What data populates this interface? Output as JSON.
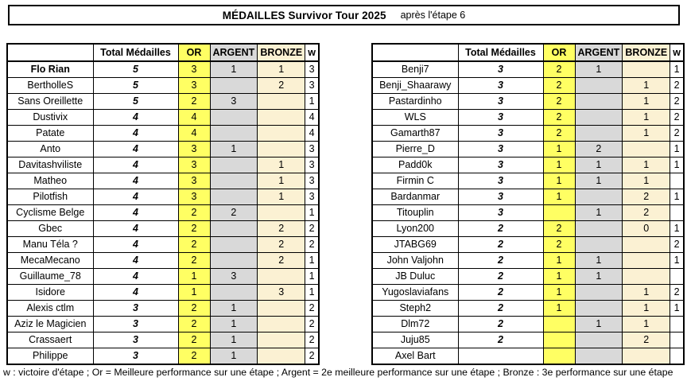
{
  "title": {
    "main": "MÉDAILLES Survivor Tour 2025",
    "sub": "après l'étape 6"
  },
  "columns": {
    "name": "",
    "total": "Total Médailles",
    "or": "OR",
    "argent": "ARGENT",
    "bronze": "BRONZE",
    "w": "w"
  },
  "colors": {
    "or_bg": "#FFFF63",
    "argent_bg": "#D9D9D9",
    "bronze_bg": "#FBF1D3",
    "border": "#000000"
  },
  "left_table": {
    "rows": [
      {
        "name": "Flo Rian",
        "bold": true,
        "total": "5",
        "or": "3",
        "argent": "1",
        "bronze": "1",
        "w": "3"
      },
      {
        "name": "BertholleS",
        "total": "5",
        "or": "3",
        "argent": "",
        "bronze": "2",
        "w": "3"
      },
      {
        "name": "Sans Oreillette",
        "total": "5",
        "or": "2",
        "argent": "3",
        "bronze": "",
        "w": "1"
      },
      {
        "name": "Dustivix",
        "total": "4",
        "or": "4",
        "argent": "",
        "bronze": "",
        "w": "4"
      },
      {
        "name": "Patate",
        "total": "4",
        "or": "4",
        "argent": "",
        "bronze": "",
        "w": "4"
      },
      {
        "name": "Anto",
        "total": "4",
        "or": "3",
        "argent": "1",
        "bronze": "",
        "w": "3"
      },
      {
        "name": "Davitashviliste",
        "total": "4",
        "or": "3",
        "argent": "",
        "bronze": "1",
        "w": "3"
      },
      {
        "name": "Matheo",
        "total": "4",
        "or": "3",
        "argent": "",
        "bronze": "1",
        "w": "3"
      },
      {
        "name": "Pilotfish",
        "total": "4",
        "or": "3",
        "argent": "",
        "bronze": "1",
        "w": "3"
      },
      {
        "name": "Cyclisme Belge",
        "total": "4",
        "or": "2",
        "argent": "2",
        "bronze": "",
        "w": "1"
      },
      {
        "name": "Gbec",
        "total": "4",
        "or": "2",
        "argent": "",
        "bronze": "2",
        "w": "2"
      },
      {
        "name": "Manu Téla ?",
        "total": "4",
        "or": "2",
        "argent": "",
        "bronze": "2",
        "w": "2"
      },
      {
        "name": "MecaMecano",
        "total": "4",
        "or": "2",
        "argent": "",
        "bronze": "2",
        "w": "1"
      },
      {
        "name": "Guillaume_78",
        "total": "4",
        "or": "1",
        "argent": "3",
        "bronze": "",
        "w": "1"
      },
      {
        "name": "Isidore",
        "total": "4",
        "or": "1",
        "argent": "",
        "bronze": "3",
        "w": "1"
      },
      {
        "name": "Alexis ctlm",
        "total": "3",
        "or": "2",
        "argent": "1",
        "bronze": "",
        "w": "2"
      },
      {
        "name": "Aziz le Magicien",
        "total": "3",
        "or": "2",
        "argent": "1",
        "bronze": "",
        "w": "2"
      },
      {
        "name": "Crassaert",
        "total": "3",
        "or": "2",
        "argent": "1",
        "bronze": "",
        "w": "2"
      },
      {
        "name": "Philippe",
        "total": "3",
        "or": "2",
        "argent": "1",
        "bronze": "",
        "w": "2"
      }
    ]
  },
  "right_table": {
    "rows": [
      {
        "name": "Benji7",
        "total": "3",
        "or": "2",
        "argent": "1",
        "bronze": "",
        "w": "1"
      },
      {
        "name": "Benji_Shaarawy",
        "total": "3",
        "or": "2",
        "argent": "",
        "bronze": "1",
        "w": "2"
      },
      {
        "name": "Pastardinho",
        "total": "3",
        "or": "2",
        "argent": "",
        "bronze": "1",
        "w": "2"
      },
      {
        "name": "WLS",
        "total": "3",
        "or": "2",
        "argent": "",
        "bronze": "1",
        "w": "2"
      },
      {
        "name": "Gamarth87",
        "total": "3",
        "or": "2",
        "argent": "",
        "bronze": "1",
        "w": "2"
      },
      {
        "name": "Pierre_D",
        "total": "3",
        "or": "1",
        "argent": "2",
        "bronze": "",
        "w": "1"
      },
      {
        "name": "Padd0k",
        "total": "3",
        "or": "1",
        "argent": "1",
        "bronze": "1",
        "w": "1"
      },
      {
        "name": "Firmin C",
        "total": "3",
        "or": "1",
        "argent": "1",
        "bronze": "1",
        "w": ""
      },
      {
        "name": "Bardanmar",
        "total": "3",
        "or": "1",
        "argent": "",
        "bronze": "2",
        "w": "1"
      },
      {
        "name": "Titouplin",
        "total": "3",
        "or": "",
        "argent": "1",
        "bronze": "2",
        "w": ""
      },
      {
        "name": "Lyon200",
        "total": "2",
        "or": "2",
        "argent": "",
        "bronze": "0",
        "w": "1"
      },
      {
        "name": "JTABG69",
        "total": "2",
        "or": "2",
        "argent": "",
        "bronze": "",
        "w": "2"
      },
      {
        "name": "John Valjohn",
        "total": "2",
        "or": "1",
        "argent": "1",
        "bronze": "",
        "w": "1"
      },
      {
        "name": "JB Duluc",
        "total": "2",
        "or": "1",
        "argent": "1",
        "bronze": "",
        "w": ""
      },
      {
        "name": "Yugoslaviafans",
        "total": "2",
        "or": "1",
        "argent": "",
        "bronze": "1",
        "w": "2"
      },
      {
        "name": "Steph2",
        "total": "2",
        "or": "1",
        "argent": "",
        "bronze": "1",
        "w": "1"
      },
      {
        "name": "Dlm72",
        "total": "2",
        "or": "",
        "argent": "1",
        "bronze": "1",
        "w": ""
      },
      {
        "name": "Juju85",
        "total": "2",
        "or": "",
        "argent": "",
        "bronze": "2",
        "w": ""
      },
      {
        "name": "Axel Bart",
        "total": "",
        "or": "",
        "argent": "",
        "bronze": "",
        "w": ""
      }
    ]
  },
  "footer": "w : victoire d'étape ; Or = Meilleure performance sur une étape ; Argent = 2e meilleure performance sur une étape ;  Bronze : 3e performance sur une étape"
}
